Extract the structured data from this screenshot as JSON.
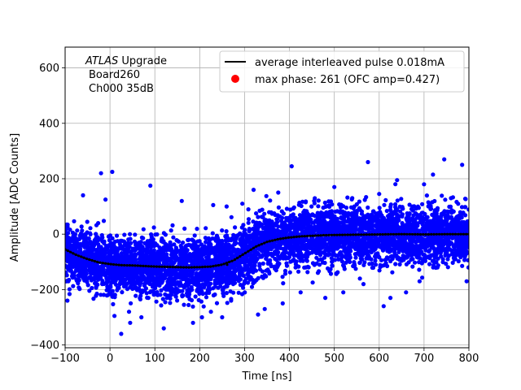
{
  "chart_data": {
    "type": "scatter",
    "title": "",
    "xlabel": "Time [ns]",
    "ylabel": "Amplitude [ADC Counts]",
    "xlim": [
      -100,
      800
    ],
    "ylim": [
      -410,
      675
    ],
    "xticks": [
      -100,
      0,
      100,
      200,
      300,
      400,
      500,
      600,
      700,
      800
    ],
    "yticks": [
      -400,
      -200,
      0,
      200,
      400,
      600
    ],
    "grid": true,
    "legend_position": "top-right",
    "annotation": {
      "line1_italic": "ATLAS",
      "line1_rest": " Upgrade",
      "line2": "Board260",
      "line3": "Ch000 35dB"
    },
    "series": [
      {
        "name": "average interleaved pulse 0.018mA",
        "kind": "line",
        "color": "#000000",
        "x": [
          -100,
          -75,
          -50,
          -25,
          0,
          25,
          50,
          75,
          100,
          125,
          150,
          175,
          200,
          225,
          250,
          275,
          300,
          325,
          350,
          375,
          400,
          425,
          450,
          475,
          500,
          550,
          600,
          650,
          700,
          750,
          800
        ],
        "y": [
          -55,
          -75,
          -90,
          -102,
          -108,
          -112,
          -113,
          -115,
          -117,
          -118,
          -119,
          -120,
          -119,
          -117,
          -110,
          -95,
          -70,
          -45,
          -28,
          -18,
          -12,
          -8,
          -6,
          -4,
          -3,
          -2,
          -1,
          0,
          -1,
          0,
          0
        ]
      },
      {
        "name": "",
        "kind": "scatter",
        "color": "#0000ff",
        "spread": 110,
        "outliers": [
          [
            -20,
            220
          ],
          [
            -10,
            125
          ],
          [
            -5,
            -220
          ],
          [
            10,
            -295
          ],
          [
            25,
            -360
          ],
          [
            45,
            -320
          ],
          [
            70,
            -300
          ],
          [
            95,
            -190
          ],
          [
            120,
            -340
          ],
          [
            145,
            -210
          ],
          [
            165,
            -255
          ],
          [
            185,
            -320
          ],
          [
            205,
            -300
          ],
          [
            225,
            -280
          ],
          [
            250,
            -300
          ],
          [
            270,
            -240
          ],
          [
            295,
            110
          ],
          [
            320,
            160
          ],
          [
            345,
            -270
          ],
          [
            375,
            150
          ],
          [
            405,
            245
          ],
          [
            425,
            -210
          ],
          [
            455,
            120
          ],
          [
            480,
            -230
          ],
          [
            520,
            -210
          ],
          [
            540,
            130
          ],
          [
            565,
            -180
          ],
          [
            575,
            260
          ],
          [
            600,
            145
          ],
          [
            625,
            -230
          ],
          [
            640,
            195
          ],
          [
            660,
            -210
          ],
          [
            690,
            -170
          ],
          [
            720,
            215
          ],
          [
            745,
            270
          ],
          [
            760,
            130
          ],
          [
            785,
            250
          ],
          [
            795,
            -170
          ],
          [
            -95,
            -240
          ],
          [
            -60,
            140
          ],
          [
            5,
            225
          ],
          [
            90,
            175
          ],
          [
            160,
            120
          ],
          [
            230,
            105
          ],
          [
            260,
            100
          ],
          [
            330,
            -290
          ],
          [
            385,
            -250
          ],
          [
            500,
            170
          ],
          [
            610,
            -260
          ],
          [
            700,
            180
          ]
        ]
      },
      {
        "name": "max phase: 261 (OFC amp=0.427)",
        "kind": "point",
        "color": "#ff0000",
        "x": [
          261
        ],
        "y": [
          -110
        ]
      }
    ]
  }
}
